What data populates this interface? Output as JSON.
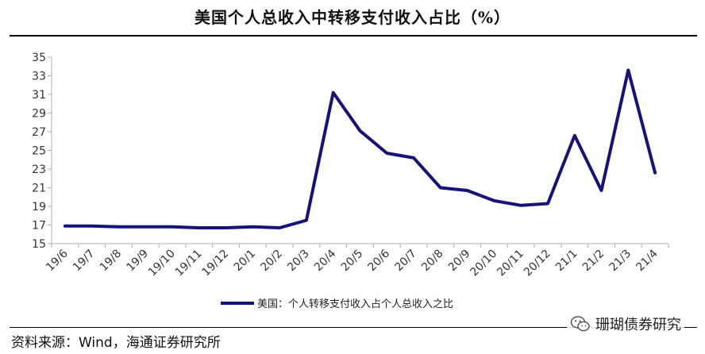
{
  "header": {
    "title": "美国个人总收入中转移支付收入占比（%）"
  },
  "footer": {
    "source": "资料来源：Wind，海通证券研究所",
    "watermark": "珊瑚债券研究"
  },
  "icons": {
    "watermark_icon": "wechat-icon"
  },
  "colors": {
    "series": "#15137a",
    "axis": "#b0b0b0"
  },
  "chart_data": {
    "type": "line",
    "title": "美国个人总收入中转移支付收入占比（%）",
    "xlabel": "",
    "ylabel": "",
    "ylim": [
      15,
      35
    ],
    "yticks": [
      15,
      17,
      19,
      21,
      23,
      25,
      27,
      29,
      31,
      33,
      35
    ],
    "grid": false,
    "legend_position": "bottom-center",
    "categories": [
      "19/6",
      "19/7",
      "19/8",
      "19/9",
      "19/10",
      "19/11",
      "19/12",
      "20/1",
      "20/2",
      "20/3",
      "20/4",
      "20/5",
      "20/6",
      "20/7",
      "20/8",
      "20/9",
      "20/10",
      "20/11",
      "20/12",
      "21/1",
      "21/2",
      "21/3",
      "21/4"
    ],
    "series": [
      {
        "name": "美国：个人转移支付收入占个人总收入之比",
        "values": [
          16.9,
          16.9,
          16.8,
          16.8,
          16.8,
          16.7,
          16.7,
          16.8,
          16.7,
          17.5,
          31.2,
          27.1,
          24.7,
          24.2,
          21.0,
          20.7,
          19.6,
          19.1,
          19.3,
          26.6,
          20.7,
          33.6,
          22.6
        ]
      }
    ]
  }
}
